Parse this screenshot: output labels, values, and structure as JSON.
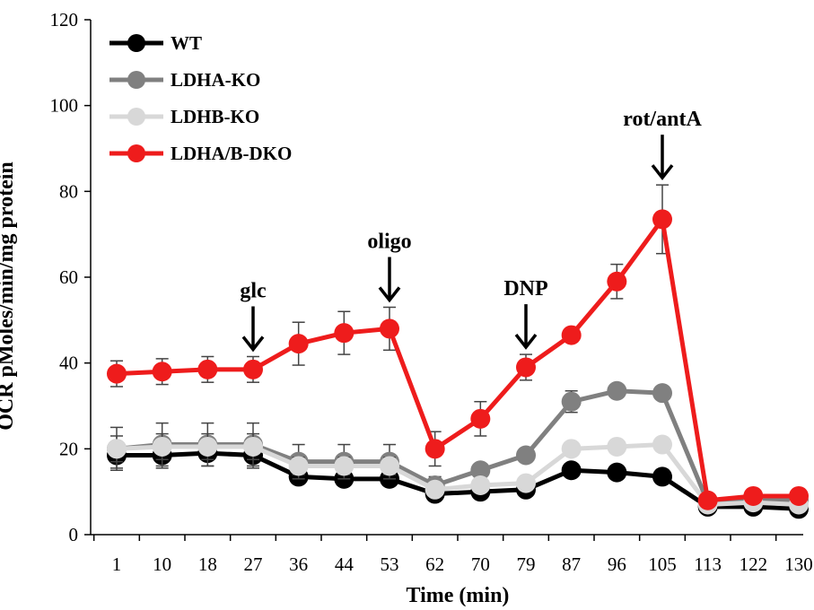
{
  "chart_data": {
    "type": "line",
    "title": "",
    "xlabel": "Time (min)",
    "ylabel": "OCR pMoles/min/mg protein",
    "ylim": [
      0,
      120
    ],
    "yticks": [
      0,
      20,
      40,
      60,
      80,
      100,
      120
    ],
    "categories": [
      "1",
      "10",
      "18",
      "27",
      "36",
      "44",
      "53",
      "62",
      "70",
      "79",
      "87",
      "96",
      "105",
      "113",
      "122",
      "130"
    ],
    "legend_position": "top-left",
    "grid": false,
    "series": [
      {
        "name": "WT",
        "color": "#000000",
        "values": [
          18.5,
          18.5,
          19,
          18.5,
          13.5,
          13,
          13,
          9.5,
          10,
          10.5,
          15,
          14.5,
          13.5,
          6.5,
          6.5,
          6
        ],
        "errors": [
          3,
          3,
          3,
          3,
          0,
          0,
          0,
          0,
          0,
          0,
          0,
          0,
          0,
          0,
          0,
          0
        ]
      },
      {
        "name": "LDHA-KO",
        "color": "#808080",
        "values": [
          20,
          21,
          21,
          21,
          17,
          17,
          17,
          11.5,
          15,
          18.5,
          31,
          33.5,
          33,
          7.5,
          8,
          8
        ],
        "errors": [
          5,
          5,
          5,
          5,
          4,
          4,
          4,
          2,
          1,
          1.5,
          2.5,
          1,
          1,
          1,
          0.5,
          0.5
        ]
      },
      {
        "name": "LDHB-KO",
        "color": "#d8d8d8",
        "values": [
          20,
          20.5,
          20.5,
          20.5,
          16,
          16,
          16,
          10.5,
          11.5,
          12,
          20,
          20.5,
          21,
          7,
          7.5,
          7
        ],
        "errors": [
          3,
          3,
          3,
          3,
          2,
          2,
          2,
          1,
          1,
          1,
          1,
          1,
          1.5,
          0.5,
          0.5,
          0.5
        ]
      },
      {
        "name": "LDHA/B-DKO",
        "color": "#ee1c1c",
        "values": [
          37.5,
          38,
          38.5,
          38.5,
          44.5,
          47,
          48,
          20,
          27,
          39,
          46.5,
          59,
          73.5,
          8,
          9,
          9
        ],
        "errors": [
          3,
          3,
          3,
          3,
          5,
          5,
          5,
          4,
          4,
          3,
          0,
          4,
          8,
          1,
          1,
          1
        ]
      }
    ],
    "annotations": [
      {
        "label": "glc",
        "x": "27"
      },
      {
        "label": "oligo",
        "x": "53"
      },
      {
        "label": "DNP",
        "x": "79"
      },
      {
        "label": "rot/antA",
        "x": "105"
      }
    ]
  }
}
